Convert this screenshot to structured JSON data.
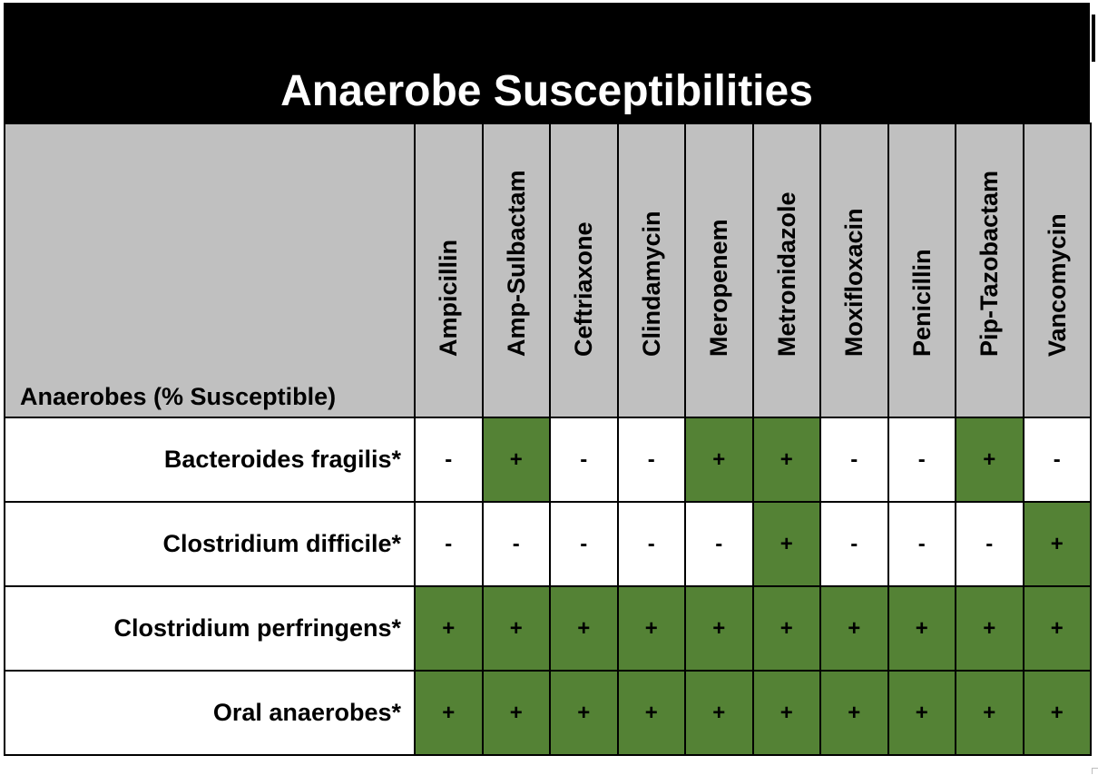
{
  "title": "Anaerobe Susceptibilities",
  "row_header": "Anaerobes (% Susceptible)",
  "columns": [
    "Ampicillin",
    "Amp-Sulbactam",
    "Ceftriaxone",
    "Clindamycin",
    "Meropenem",
    "Metronidazole",
    "Moxifloxacin",
    "Penicillin",
    "Pip-Tazobactam",
    "Vancomycin"
  ],
  "colors": {
    "susceptible": "#548235",
    "header": "#c0c0c0",
    "title_bar": "#000000"
  },
  "rows": [
    {
      "name": "Bacteroides fragilis*",
      "values": [
        "-",
        "+",
        "-",
        "-",
        "+",
        "+",
        "-",
        "-",
        "+",
        "-"
      ]
    },
    {
      "name": "Clostridium difficile*",
      "values": [
        "-",
        "-",
        "-",
        "-",
        "-",
        "+",
        "-",
        "-",
        "-",
        "+"
      ]
    },
    {
      "name": "Clostridium perfringens*",
      "values": [
        "+",
        "+",
        "+",
        "+",
        "+",
        "+",
        "+",
        "+",
        "+",
        "+"
      ]
    },
    {
      "name": "Oral anaerobes*",
      "values": [
        "+",
        "+",
        "+",
        "+",
        "+",
        "+",
        "+",
        "+",
        "+",
        "+"
      ]
    }
  ]
}
